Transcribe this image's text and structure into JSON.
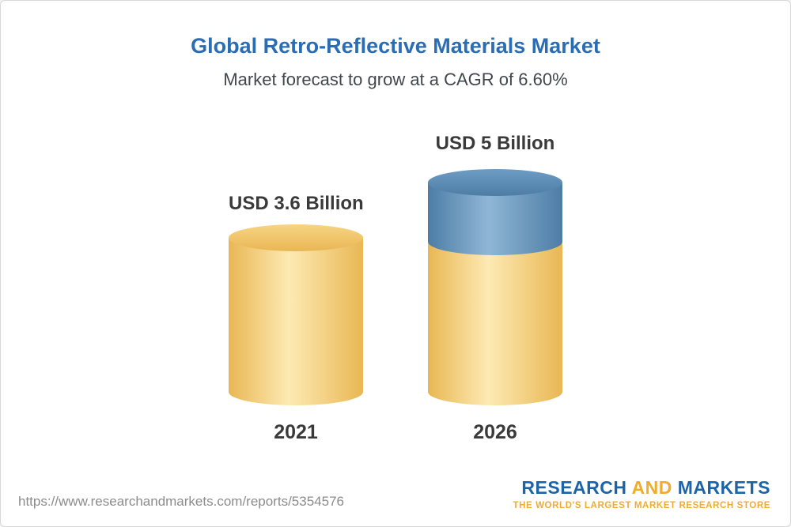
{
  "header": {
    "title": "Global Retro-Reflective Materials Market",
    "subtitle": "Market forecast to grow at a CAGR of 6.60%"
  },
  "chart_data": {
    "type": "bar",
    "style": "3d-cylinder",
    "categories": [
      "2021",
      "2026"
    ],
    "values": [
      3.6,
      5
    ],
    "unit": "USD Billion",
    "value_labels": [
      "USD 3.6 Billion",
      "USD 5 Billion"
    ],
    "title": "Global Retro-Reflective Materials Market",
    "subtitle": "Market forecast to grow at a CAGR of 6.60%",
    "cagr_percent": 6.6,
    "xlabel": "",
    "ylabel": "",
    "grid": false,
    "legend": false,
    "stacked_segments": {
      "2021": [
        {
          "color": "yellow",
          "value": 3.6
        }
      ],
      "2026": [
        {
          "color": "yellow",
          "value": 3.6
        },
        {
          "color": "blue",
          "value": 1.4
        }
      ]
    }
  },
  "footer": {
    "url": "https://www.researchandmarkets.com/reports/5354576",
    "logo": {
      "word1": "RESEARCH",
      "word2": "AND",
      "word3": "MARKETS",
      "tagline": "THE WORLD'S LARGEST MARKET RESEARCH STORE"
    }
  },
  "colors": {
    "title-blue": "#2a6db4",
    "subtitle-gray": "#41474d",
    "label-dark": "#3a3a3a",
    "bar-yellow": "#f7d483",
    "bar-yellow-edge": "#e9b754",
    "bar-yellow-light": "#fdeab3",
    "bar-blue": "#6d9dc5",
    "bar-blue-edge": "#4d7da5",
    "bar-blue-light": "#8fb6d6",
    "logo-blue": "#1d63a8",
    "logo-gold": "#efac2e",
    "url-gray": "#8c8c8c"
  }
}
